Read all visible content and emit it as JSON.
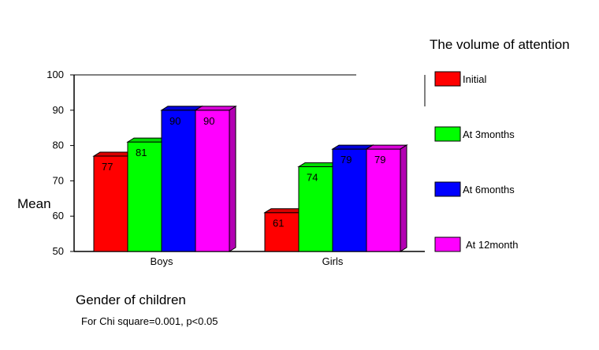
{
  "chart_data": {
    "type": "bar",
    "title": "",
    "ylabel": "Mean",
    "xlabel": "Gender of children",
    "note": "For Chi square=0.001, p<0.05",
    "legend_title": "The volume of attention",
    "legend_position": "right",
    "ylim": [
      50,
      100
    ],
    "yticks": [
      50,
      60,
      70,
      80,
      90,
      100
    ],
    "grid": false,
    "categories": [
      "Boys",
      "Girls"
    ],
    "series": [
      {
        "name": "Initial",
        "color": "#ff0000",
        "values": [
          77,
          61
        ]
      },
      {
        "name": "At 3months",
        "color": "#00ff00",
        "values": [
          81,
          74
        ]
      },
      {
        "name": "At 6months",
        "color": "#0000ff",
        "values": [
          90,
          79
        ]
      },
      {
        "name": "At 12month",
        "color": "#ff00ff",
        "values": [
          90,
          79
        ]
      }
    ]
  }
}
